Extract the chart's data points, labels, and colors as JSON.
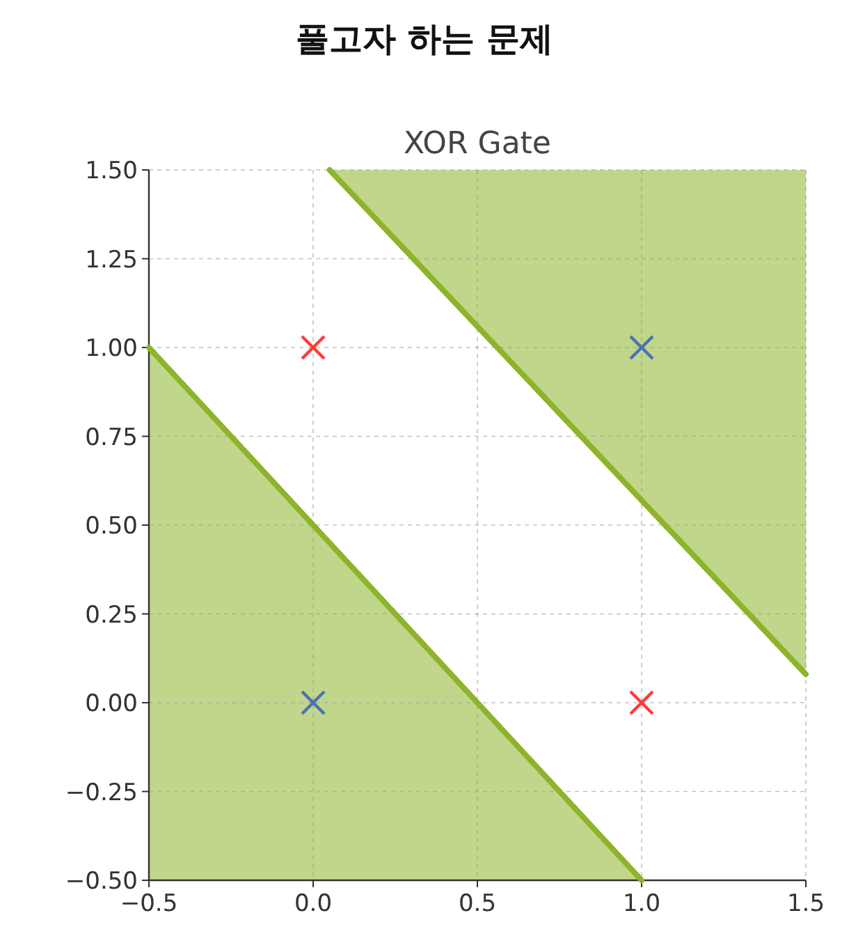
{
  "chart_data": {
    "type": "scatter",
    "title": "풀고자 하는 문제",
    "subtitle": "XOR Gate",
    "grid": true,
    "xlim": [
      -0.5,
      1.5
    ],
    "ylim": [
      -0.5,
      1.5
    ],
    "xticks": [
      {
        "value": -0.5,
        "label": "−0.5"
      },
      {
        "value": 0,
        "label": "0.0"
      },
      {
        "value": 0.5,
        "label": "0.5"
      },
      {
        "value": 1,
        "label": "1.0"
      },
      {
        "value": 1.5,
        "label": "1.5"
      }
    ],
    "yticks": [
      {
        "value": -0.5,
        "label": "−0.50"
      },
      {
        "value": -0.25,
        "label": "−0.25"
      },
      {
        "value": 0,
        "label": "0.00"
      },
      {
        "value": 0.25,
        "label": "0.25"
      },
      {
        "value": 0.5,
        "label": "0.50"
      },
      {
        "value": 0.75,
        "label": "0.75"
      },
      {
        "value": 1,
        "label": "1.00"
      },
      {
        "value": 1.25,
        "label": "1.25"
      },
      {
        "value": 1.5,
        "label": "1.50"
      }
    ],
    "series": [
      {
        "type": "line",
        "color": "#8db42a",
        "x": [
          -0.5,
          0.5,
          1.0
        ],
        "values": [
          1.0,
          0.0,
          -0.5
        ],
        "lower": [
          -0.5,
          -0.5,
          -0.5
        ],
        "upper": [
          1.0,
          0.0,
          -0.5
        ]
      },
      {
        "type": "line",
        "color": "#8db42a",
        "x": [
          0.05,
          1.5
        ],
        "values": [
          1.5,
          0.08
        ],
        "lower": [
          1.5,
          0.08
        ],
        "upper": [
          1.5,
          1.5
        ]
      },
      {
        "marker": "cross",
        "color": "#4c72b0",
        "x": [
          0,
          1
        ],
        "values": [
          0,
          1
        ]
      },
      {
        "marker": "cross",
        "color": "#ff3b3b",
        "x": [
          0,
          1
        ],
        "values": [
          1,
          0
        ]
      }
    ]
  }
}
